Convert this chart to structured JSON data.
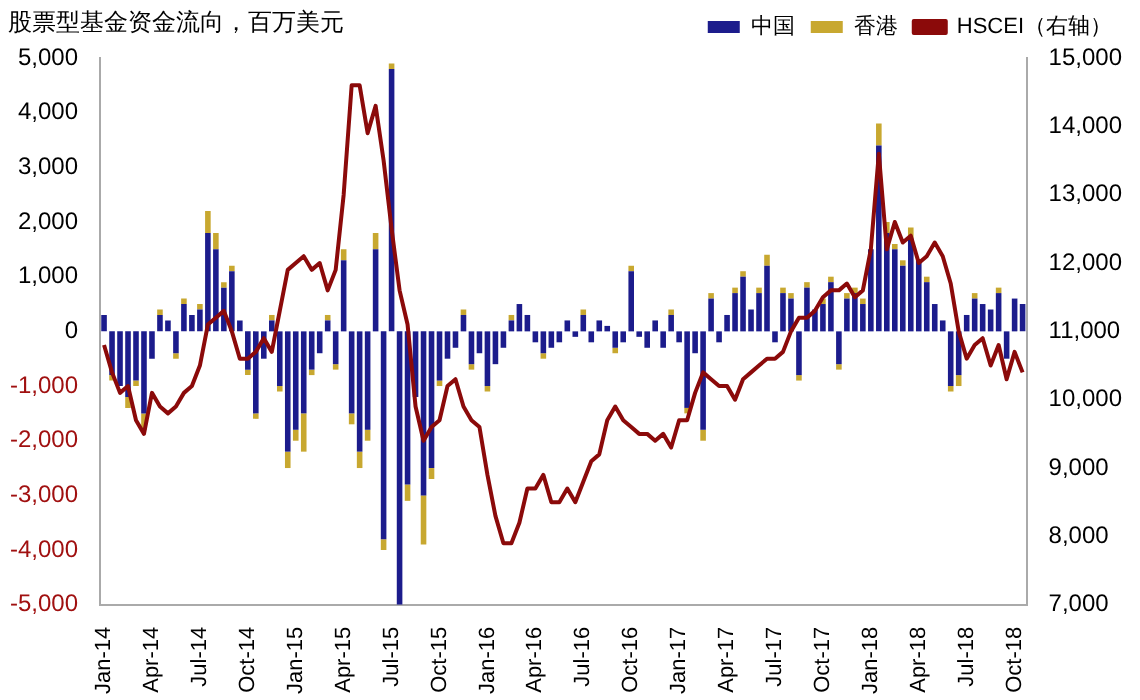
{
  "chart_data": {
    "type": "bar",
    "stacked": true,
    "title": "股票型基金资金流向，百万美元",
    "categories": [
      "Jan-14",
      null,
      null,
      null,
      null,
      null,
      "Apr-14",
      null,
      null,
      null,
      null,
      null,
      "Jul-14",
      null,
      null,
      null,
      null,
      null,
      "Oct-14",
      null,
      null,
      null,
      null,
      null,
      "Jan-15",
      null,
      null,
      null,
      null,
      null,
      "Apr-15",
      null,
      null,
      null,
      null,
      null,
      "Jul-15",
      null,
      null,
      null,
      null,
      null,
      "Oct-15",
      null,
      null,
      null,
      null,
      null,
      "Jan-16",
      null,
      null,
      null,
      null,
      null,
      "Apr-16",
      null,
      null,
      null,
      null,
      null,
      "Jul-16",
      null,
      null,
      null,
      null,
      null,
      "Oct-16",
      null,
      null,
      null,
      null,
      null,
      "Jan-17",
      null,
      null,
      null,
      null,
      null,
      "Apr-17",
      null,
      null,
      null,
      null,
      null,
      "Jul-17",
      null,
      null,
      null,
      null,
      null,
      "Oct-17",
      null,
      null,
      null,
      null,
      null,
      "Jan-18",
      null,
      null,
      null,
      null,
      null,
      "Apr-18",
      null,
      null,
      null,
      null,
      null,
      "Jul-18",
      null,
      null,
      null,
      null,
      null,
      "Oct-18",
      null
    ],
    "series": [
      {
        "name": "中国",
        "color": "#1c1c8c",
        "values": [
          300,
          -800,
          -1000,
          -1200,
          -900,
          -1500,
          -500,
          300,
          200,
          -400,
          500,
          300,
          400,
          1800,
          1500,
          800,
          1100,
          200,
          -700,
          -1500,
          -500,
          200,
          -1000,
          -2200,
          -1800,
          -1500,
          -700,
          -400,
          200,
          -600,
          1300,
          -1500,
          -2200,
          -1800,
          1500,
          -3800,
          4800,
          -5000,
          -2800,
          -1200,
          -3000,
          -2500,
          -900,
          -500,
          -300,
          300,
          -600,
          -400,
          -1000,
          -600,
          -300,
          200,
          500,
          300,
          -200,
          -400,
          -300,
          -200,
          200,
          -100,
          300,
          -200,
          200,
          100,
          -300,
          -200,
          1100,
          -100,
          -300,
          200,
          -300,
          300,
          -200,
          -1400,
          -400,
          -1800,
          600,
          -200,
          300,
          700,
          1000,
          400,
          700,
          1200,
          -200,
          700,
          600,
          -800,
          800,
          400,
          500,
          900,
          -600,
          600,
          700,
          500,
          1500,
          3400,
          1800,
          1500,
          1200,
          1700,
          1300,
          900,
          500,
          200,
          -1000,
          -800,
          300,
          600,
          500,
          400,
          700,
          -500,
          600,
          500
        ]
      },
      {
        "name": "香港",
        "color": "#c8a830",
        "values": [
          0,
          -100,
          null,
          -200,
          -100,
          -300,
          0,
          100,
          0,
          -100,
          100,
          0,
          100,
          400,
          300,
          100,
          100,
          0,
          -100,
          -100,
          0,
          100,
          -100,
          -300,
          -200,
          -700,
          -100,
          0,
          100,
          -100,
          200,
          -200,
          -300,
          -200,
          300,
          -200,
          100,
          0,
          -300,
          null,
          -900,
          -200,
          -100,
          0,
          0,
          100,
          -100,
          0,
          -100,
          0,
          0,
          100,
          0,
          0,
          0,
          -100,
          0,
          0,
          0,
          0,
          100,
          0,
          0,
          0,
          -100,
          0,
          100,
          0,
          0,
          0,
          0,
          100,
          0,
          -100,
          0,
          -200,
          100,
          0,
          0,
          100,
          100,
          0,
          100,
          200,
          0,
          100,
          100,
          -100,
          100,
          0,
          100,
          100,
          -100,
          100,
          100,
          100,
          null,
          400,
          200,
          100,
          100,
          200,
          null,
          100,
          0,
          0,
          -100,
          -200,
          0,
          100,
          0,
          0,
          100,
          0,
          0,
          0
        ]
      },
      {
        "name": "HSCEI（右轴）",
        "type": "line",
        "axis": "y2",
        "color": "#8b0a0a",
        "values": [
          10800,
          10400,
          10100,
          10200,
          9700,
          9500,
          10100,
          9900,
          9800,
          9900,
          10100,
          10200,
          10500,
          11100,
          11200,
          11300,
          11000,
          10600,
          10600,
          10700,
          10900,
          10700,
          11300,
          11900,
          12000,
          12100,
          11900,
          12000,
          11600,
          11900,
          13000,
          14600,
          14600,
          13900,
          14300,
          13500,
          12500,
          11600,
          11100,
          9900,
          9400,
          9600,
          9700,
          10200,
          10300,
          9900,
          9700,
          9600,
          8900,
          8300,
          7900,
          7900,
          8200,
          8700,
          8700,
          8900,
          8500,
          8500,
          8700,
          8500,
          8800,
          9100,
          9200,
          9700,
          9900,
          9700,
          9600,
          9500,
          9500,
          9400,
          9500,
          9300,
          9700,
          9700,
          10100,
          10400,
          10300,
          10200,
          10200,
          10000,
          10300,
          10400,
          10500,
          10600,
          10600,
          10700,
          11000,
          11200,
          11200,
          11300,
          11500,
          11600,
          11600,
          11700,
          11500,
          11600,
          12200,
          13600,
          12200,
          12600,
          12300,
          12400,
          12000,
          12100,
          12300,
          12100,
          11700,
          11000,
          10600,
          10800,
          10900,
          10500,
          10800,
          10300,
          10700,
          10400
        ]
      }
    ],
    "ylim": [
      -5000,
      5000
    ],
    "yticks": [
      {
        "value": -5000,
        "label": "-5,000"
      },
      {
        "value": -4000,
        "label": "-4,000"
      },
      {
        "value": -3000,
        "label": "-3,000"
      },
      {
        "value": -2000,
        "label": "-2,000"
      },
      {
        "value": -1000,
        "label": "-1,000"
      },
      0,
      {
        "value": 1000,
        "label": "1,000"
      },
      {
        "value": 2000,
        "label": "2,000"
      },
      {
        "value": 3000,
        "label": "3,000"
      },
      {
        "value": 4000,
        "label": "4,000"
      },
      {
        "value": 5000,
        "label": "5,000"
      }
    ],
    "y2lim": [
      7000,
      15000
    ],
    "y2ticks": [
      {
        "value": 7000,
        "label": "7,000"
      },
      {
        "value": 8000,
        "label": "8,000"
      },
      {
        "value": 9000,
        "label": "9,000"
      },
      {
        "value": 10000,
        "label": "10,000"
      },
      {
        "value": 11000,
        "label": "11,000"
      },
      {
        "value": 12000,
        "label": "12,000"
      },
      {
        "value": 13000,
        "label": "13,000"
      },
      {
        "value": 14000,
        "label": "14,000"
      },
      {
        "value": 15000,
        "label": "15,000"
      }
    ],
    "grid": false,
    "legend": "top right",
    "marker": "none",
    "line_style": "solid"
  }
}
